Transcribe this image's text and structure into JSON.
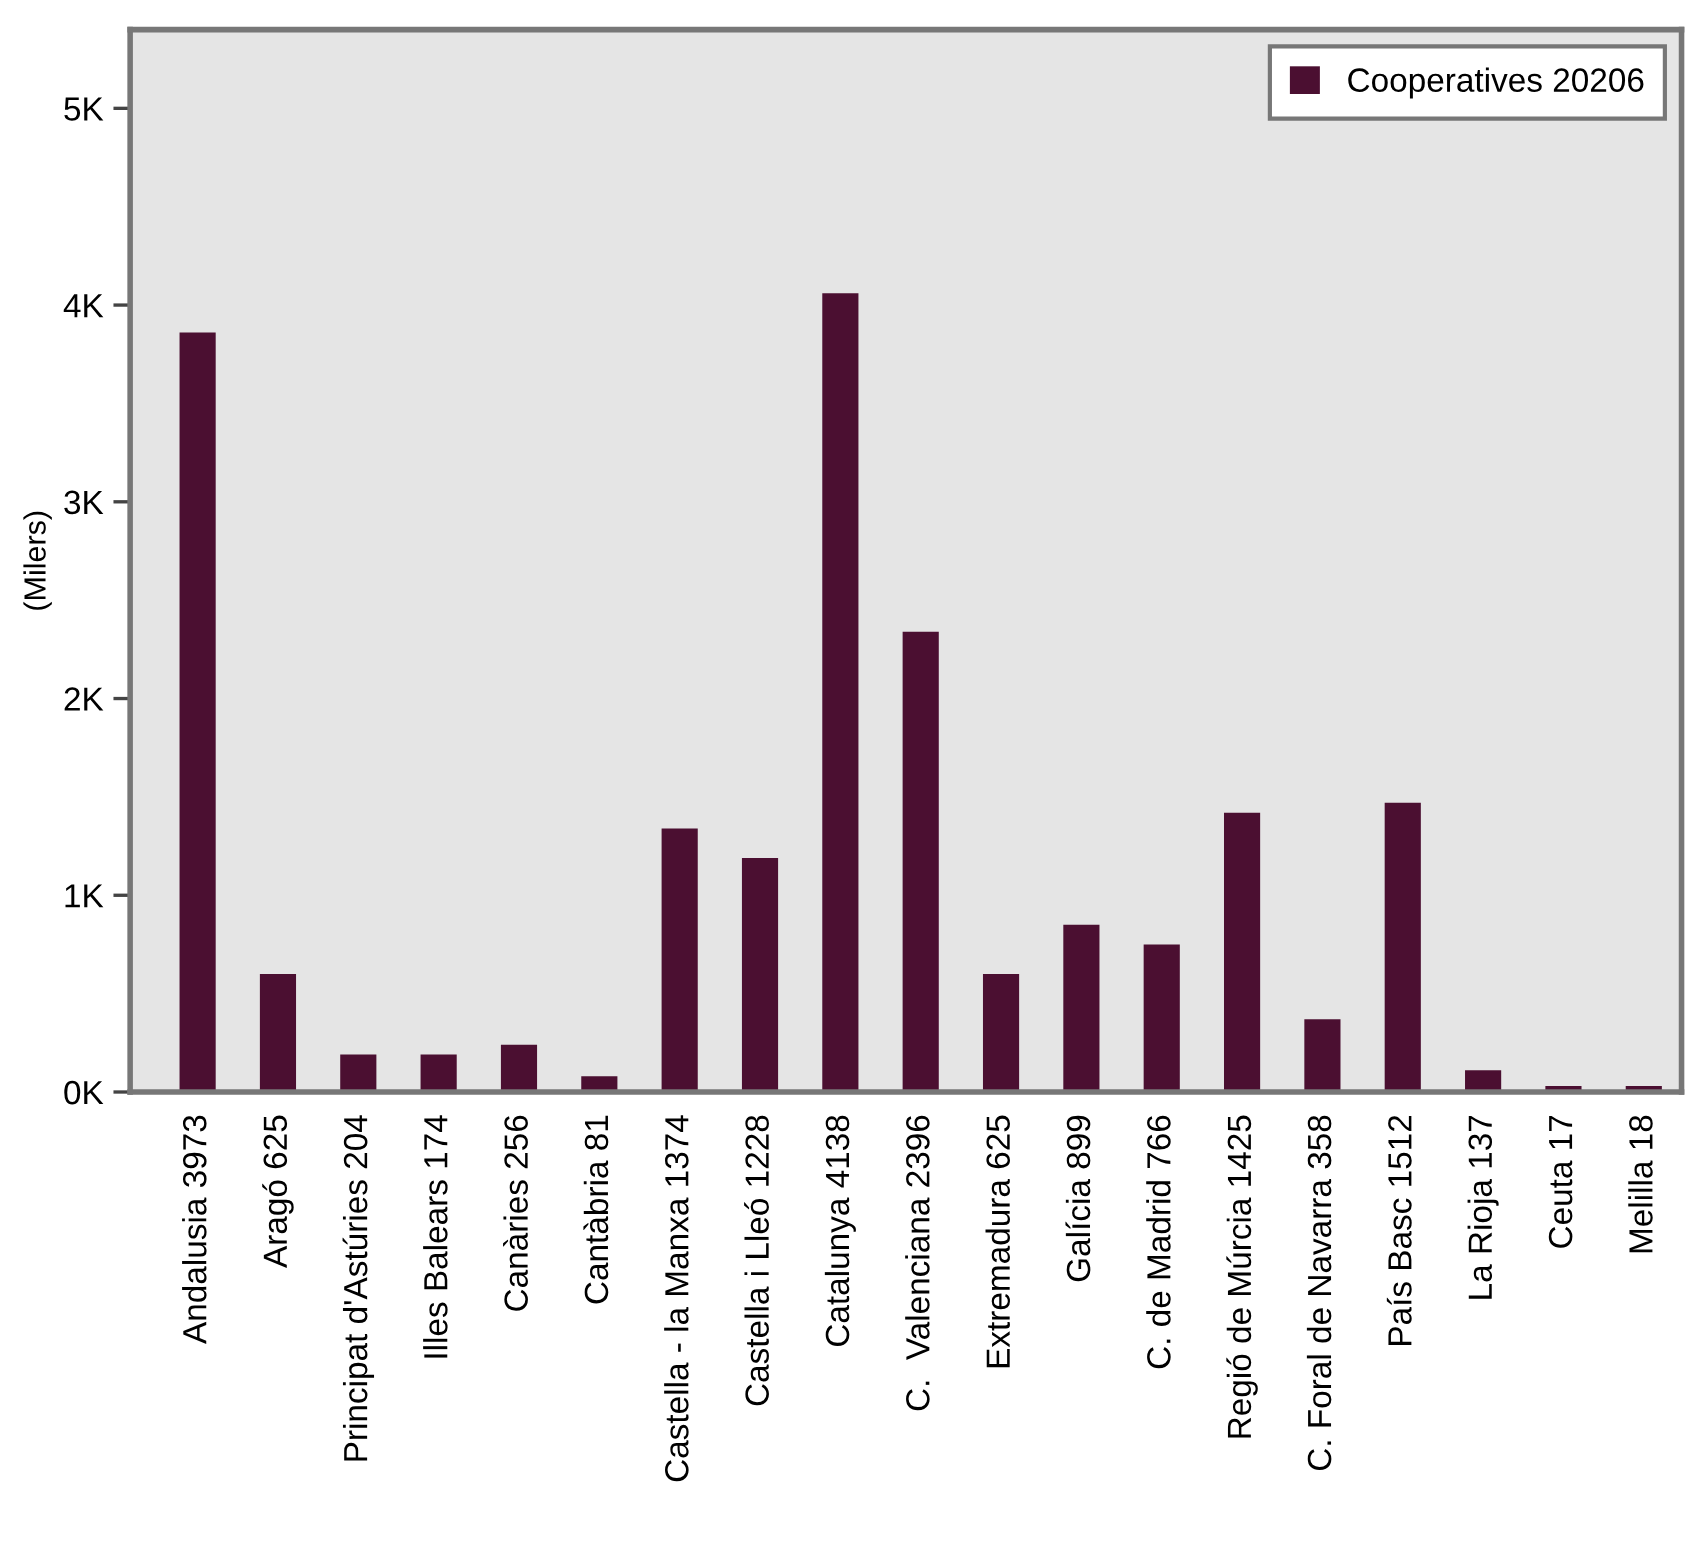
{
  "chart_data": {
    "type": "bar",
    "ylabel": "(Milers)",
    "categories": [
      "Andalusia 3973",
      "Aragó 625",
      "Principat d'Astúries 204",
      "Illes Balears 174",
      "Canàries 256",
      "Cantàbria 81",
      "Castella - la Manxa 1374",
      "Castella i Lleó 1228",
      "Catalunya 4138",
      "C.  Valenciana 2396",
      "Extremadura 625",
      "Galícia 899",
      "C. de Madrid 766",
      "Regió de Múrcia 1425",
      "C. Foral de Navarra 358",
      "País Basc 1512",
      "La Rioja 137",
      "Ceuta 17",
      "Melilla 18"
    ],
    "series": [
      {
        "name": "Cooperatives 20206",
        "color": "#4b0f31",
        "values": [
          3860,
          600,
          190,
          190,
          240,
          80,
          1340,
          1190,
          4060,
          2340,
          600,
          850,
          750,
          1420,
          370,
          1470,
          110,
          30,
          30
        ]
      }
    ],
    "ylim": [
      0,
      5400
    ],
    "yticks": [
      {
        "value": 0,
        "label": "0K"
      },
      {
        "value": 1000,
        "label": "1K"
      },
      {
        "value": 2000,
        "label": "2K"
      },
      {
        "value": 3000,
        "label": "3K"
      },
      {
        "value": 4000,
        "label": "4K"
      },
      {
        "value": 5000,
        "label": "5K"
      }
    ],
    "grid": false,
    "legend": "top right"
  }
}
